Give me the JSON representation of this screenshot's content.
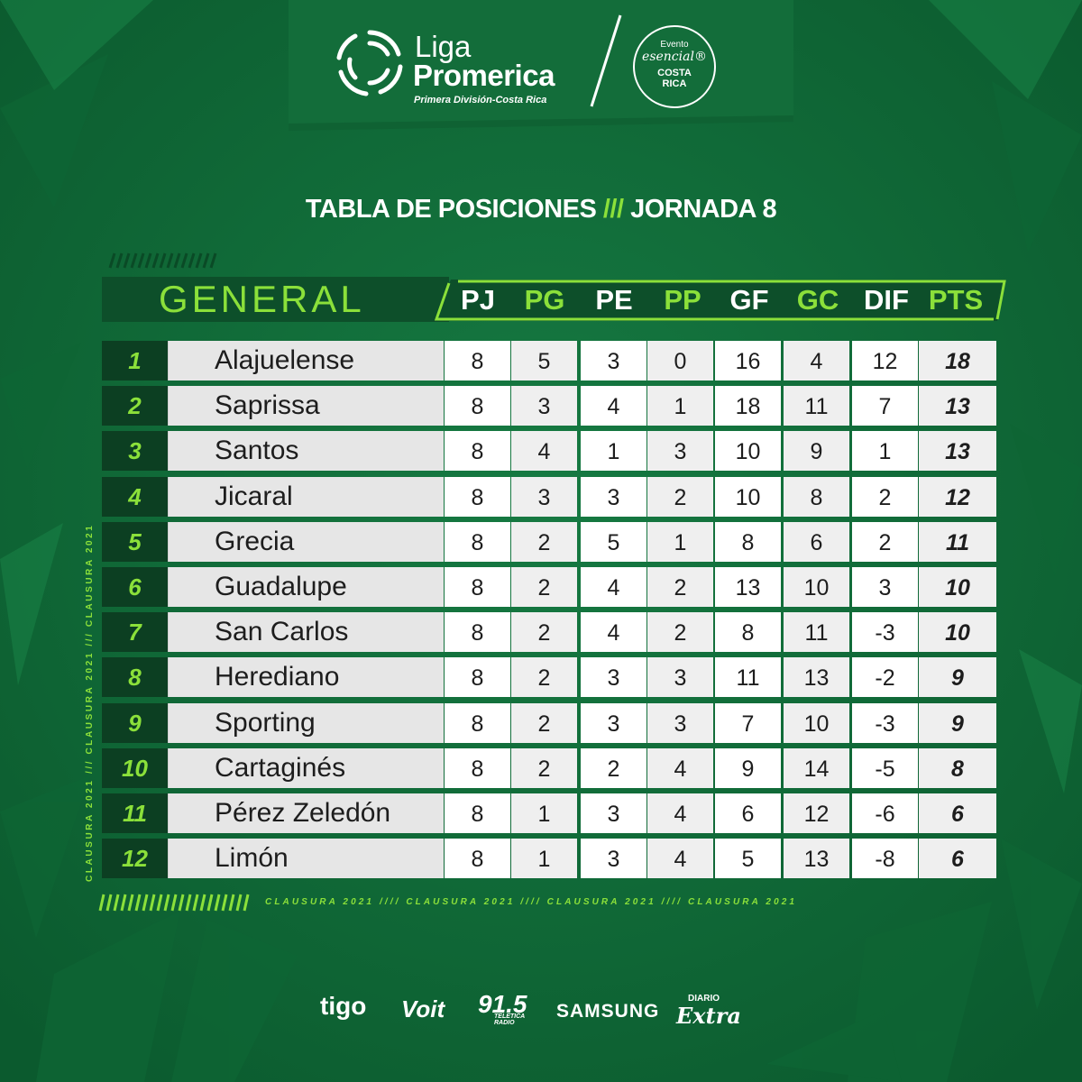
{
  "header": {
    "brand_line1": "Liga",
    "brand_line2": "Promerica",
    "brand_subtitle": "Primera División-Costa Rica",
    "badge_top": "Evento",
    "badge_script": "esencial®",
    "badge_country_1": "COSTA",
    "badge_country_2": "RICA"
  },
  "title": {
    "left": "TABLA DE POSICIONES",
    "separator": "///",
    "right": "JORNADA 8"
  },
  "table": {
    "group_label": "GENERAL",
    "columns": [
      "PJ",
      "PG",
      "PE",
      "PP",
      "GF",
      "GC",
      "DIF",
      "PTS"
    ],
    "rows": [
      {
        "pos": "1",
        "team": "Alajuelense",
        "pj": "8",
        "pg": "5",
        "pe": "3",
        "pp": "0",
        "gf": "16",
        "gc": "4",
        "dif": "12",
        "pts": "18"
      },
      {
        "pos": "2",
        "team": "Saprissa",
        "pj": "8",
        "pg": "3",
        "pe": "4",
        "pp": "1",
        "gf": "18",
        "gc": "11",
        "dif": "7",
        "pts": "13"
      },
      {
        "pos": "3",
        "team": "Santos",
        "pj": "8",
        "pg": "4",
        "pe": "1",
        "pp": "3",
        "gf": "10",
        "gc": "9",
        "dif": "1",
        "pts": "13"
      },
      {
        "pos": "4",
        "team": "Jicaral",
        "pj": "8",
        "pg": "3",
        "pe": "3",
        "pp": "2",
        "gf": "10",
        "gc": "8",
        "dif": "2",
        "pts": "12"
      },
      {
        "pos": "5",
        "team": "Grecia",
        "pj": "8",
        "pg": "2",
        "pe": "5",
        "pp": "1",
        "gf": "8",
        "gc": "6",
        "dif": "2",
        "pts": "11"
      },
      {
        "pos": "6",
        "team": "Guadalupe",
        "pj": "8",
        "pg": "2",
        "pe": "4",
        "pp": "2",
        "gf": "13",
        "gc": "10",
        "dif": "3",
        "pts": "10"
      },
      {
        "pos": "7",
        "team": "San Carlos",
        "pj": "8",
        "pg": "2",
        "pe": "4",
        "pp": "2",
        "gf": "8",
        "gc": "11",
        "dif": "-3",
        "pts": "10"
      },
      {
        "pos": "8",
        "team": "Herediano",
        "pj": "8",
        "pg": "2",
        "pe": "3",
        "pp": "3",
        "gf": "11",
        "gc": "13",
        "dif": "-2",
        "pts": "9"
      },
      {
        "pos": "9",
        "team": "Sporting",
        "pj": "8",
        "pg": "2",
        "pe": "3",
        "pp": "3",
        "gf": "7",
        "gc": "10",
        "dif": "-3",
        "pts": "9"
      },
      {
        "pos": "10",
        "team": "Cartaginés",
        "pj": "8",
        "pg": "2",
        "pe": "2",
        "pp": "4",
        "gf": "9",
        "gc": "14",
        "dif": "-5",
        "pts": "8"
      },
      {
        "pos": "11",
        "team": "Pérez Zeledón",
        "pj": "8",
        "pg": "1",
        "pe": "3",
        "pp": "4",
        "gf": "6",
        "gc": "12",
        "dif": "-6",
        "pts": "6"
      },
      {
        "pos": "12",
        "team": "Limón",
        "pj": "8",
        "pg": "1",
        "pe": "3",
        "pp": "4",
        "gf": "5",
        "gc": "13",
        "dif": "-8",
        "pts": "6"
      }
    ]
  },
  "side_text": "CLAUSURA 2021 /// CLAUSURA 2021 /// CLAUSURA 2021",
  "bottom_text": "CLAUSURA 2021 //// CLAUSURA 2021 //// CLAUSURA 2021 //// CLAUSURA 2021",
  "sponsors": {
    "tigo": "tigo",
    "voit": "Voit",
    "radio": "91.5",
    "radio_sub_1": "TELETICA",
    "radio_sub_2": "RADIO",
    "samsung": "SAMSUNG",
    "diario": "DIARIO",
    "extra": "Extra"
  },
  "colors": {
    "background": "#116838",
    "accent_green": "#8be03a",
    "dark_panel": "#0c3f22",
    "row_light": "#e6e6e6"
  }
}
